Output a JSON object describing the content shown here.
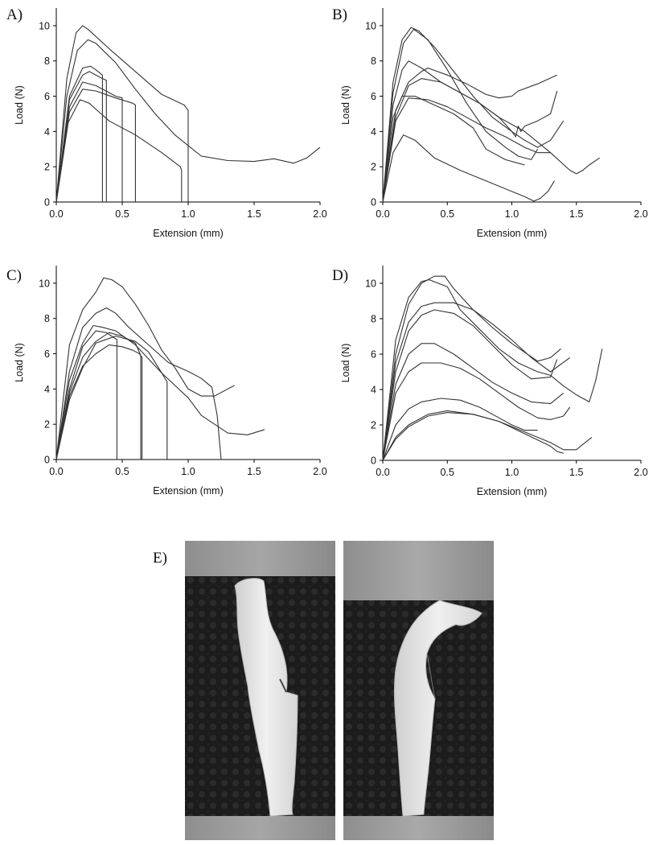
{
  "panels": [
    {
      "label": "A)"
    },
    {
      "label": "B)"
    },
    {
      "label": "C)"
    },
    {
      "label": "D)"
    },
    {
      "label": "E)"
    }
  ],
  "chart_data": [
    {
      "panel": "A)",
      "type": "line",
      "xlabel": "Extension (mm)",
      "ylabel": "Load (N)",
      "xlim": [
        0,
        2.0
      ],
      "ylim": [
        0,
        11
      ],
      "xticks": [
        "0.0",
        "0.5",
        "1.0",
        "1.5",
        "2.0"
      ],
      "yticks": [
        "0",
        "2",
        "4",
        "6",
        "8",
        "10"
      ],
      "grid": false,
      "series": [
        {
          "x": [
            0,
            0.08,
            0.15,
            0.2,
            0.24,
            0.4,
            0.6,
            0.8,
            0.97,
            1.0,
            1.0
          ],
          "y": [
            0,
            7,
            9.6,
            10.0,
            9.8,
            8.7,
            7.4,
            6.1,
            5.5,
            5.2,
            0
          ]
        },
        {
          "x": [
            0,
            0.08,
            0.16,
            0.24,
            0.3,
            0.45,
            0.6,
            0.75,
            0.9,
            1.0,
            1.1,
            1.3,
            1.5,
            1.65,
            1.8,
            1.9,
            2.0
          ],
          "y": [
            0,
            6,
            8.6,
            9.2,
            9.0,
            7.9,
            6.4,
            5.0,
            3.8,
            3.2,
            2.6,
            2.35,
            2.3,
            2.45,
            2.2,
            2.5,
            3.1
          ]
        },
        {
          "x": [
            0,
            0.1,
            0.2,
            0.26,
            0.3,
            0.35,
            0.35
          ],
          "y": [
            0,
            6,
            7.6,
            7.7,
            7.5,
            7.2,
            0
          ]
        },
        {
          "x": [
            0,
            0.1,
            0.2,
            0.25,
            0.35,
            0.38,
            0.38
          ],
          "y": [
            0,
            5.8,
            7.2,
            7.4,
            7.0,
            6.9,
            0
          ]
        },
        {
          "x": [
            0,
            0.1,
            0.2,
            0.3,
            0.45,
            0.5,
            0.5
          ],
          "y": [
            0,
            5.4,
            6.8,
            6.6,
            6.0,
            5.9,
            0
          ]
        },
        {
          "x": [
            0,
            0.1,
            0.2,
            0.3,
            0.45,
            0.58,
            0.6,
            0.6
          ],
          "y": [
            0,
            5.1,
            6.4,
            6.3,
            5.9,
            5.6,
            5.5,
            0
          ]
        },
        {
          "x": [
            0,
            0.09,
            0.18,
            0.25,
            0.4,
            0.6,
            0.8,
            0.94,
            0.95,
            0.95
          ],
          "y": [
            0,
            4.5,
            5.8,
            5.6,
            4.6,
            3.8,
            2.8,
            2.0,
            1.8,
            0
          ]
        }
      ]
    },
    {
      "panel": "B)",
      "type": "line",
      "xlabel": "Extension (mm)",
      "ylabel": "Load (N)",
      "xlim": [
        0,
        2.0
      ],
      "ylim": [
        0,
        11
      ],
      "xticks": [
        "0.0",
        "0.5",
        "1.0",
        "1.5",
        "2.0"
      ],
      "yticks": [
        "0",
        "2",
        "4",
        "6",
        "8",
        "10"
      ],
      "grid": false,
      "series": [
        {
          "x": [
            0,
            0.08,
            0.15,
            0.22,
            0.28,
            0.4,
            0.55,
            0.7,
            0.85,
            1.0,
            1.03,
            1.05,
            1.07,
            1.1,
            1.2,
            1.3,
            1.35
          ],
          "y": [
            0,
            6.8,
            9.2,
            9.9,
            9.7,
            8.8,
            7.4,
            6.0,
            4.8,
            4.0,
            3.7,
            4.3,
            4.0,
            4.3,
            4.6,
            5.0,
            6.3
          ]
        },
        {
          "x": [
            0,
            0.08,
            0.16,
            0.24,
            0.35,
            0.5,
            0.65,
            0.8,
            0.95,
            1.05,
            1.15,
            1.2
          ],
          "y": [
            0,
            6.2,
            9.0,
            9.8,
            9.2,
            7.5,
            5.6,
            4.0,
            3.1,
            2.6,
            2.4,
            3.0
          ]
        },
        {
          "x": [
            0,
            0.08,
            0.15,
            0.2,
            0.3,
            0.45,
            0.6,
            0.75,
            0.9,
            1.0,
            1.1,
            1.2,
            1.3,
            1.4
          ],
          "y": [
            0,
            5.5,
            7.5,
            8.0,
            7.6,
            6.8,
            6.2,
            5.6,
            4.8,
            4.0,
            3.5,
            3.1,
            3.5,
            4.6
          ]
        },
        {
          "x": [
            0,
            0.1,
            0.2,
            0.3,
            0.35,
            0.5,
            0.65,
            0.8,
            0.9,
            1.0,
            1.05,
            1.2,
            1.35
          ],
          "y": [
            0,
            5.2,
            6.8,
            7.4,
            7.6,
            7.2,
            6.7,
            6.1,
            5.9,
            6.0,
            6.3,
            6.7,
            7.2
          ]
        },
        {
          "x": [
            0,
            0.1,
            0.2,
            0.3,
            0.45,
            0.6,
            0.75,
            0.9,
            1.0,
            1.1,
            1.3,
            1.45,
            1.5,
            1.55,
            1.6,
            1.68
          ],
          "y": [
            0,
            4.8,
            6.6,
            7.0,
            6.8,
            6.2,
            5.6,
            4.8,
            4.4,
            4.0,
            2.8,
            1.8,
            1.6,
            1.8,
            2.1,
            2.5
          ]
        },
        {
          "x": [
            0,
            0.1,
            0.2,
            0.35,
            0.5,
            0.65,
            0.8,
            0.95,
            1.1,
            1.2,
            1.3
          ],
          "y": [
            0,
            4.6,
            5.9,
            5.8,
            5.4,
            4.8,
            4.2,
            3.7,
            3.1,
            2.8,
            2.8
          ]
        },
        {
          "x": [
            0,
            0.08,
            0.15,
            0.25,
            0.4,
            0.55,
            0.7,
            0.8,
            0.95,
            1.05,
            1.1
          ],
          "y": [
            0,
            4.8,
            6.0,
            6.0,
            5.5,
            5.0,
            4.2,
            3.0,
            2.4,
            2.2,
            2.1
          ]
        },
        {
          "x": [
            0,
            0.08,
            0.16,
            0.25,
            0.4,
            0.6,
            0.8,
            1.0,
            1.1,
            1.17,
            1.22,
            1.28,
            1.33
          ],
          "y": [
            0,
            2.8,
            3.8,
            3.5,
            2.5,
            1.8,
            1.2,
            0.6,
            0.3,
            0.05,
            0.2,
            0.6,
            1.2
          ]
        }
      ]
    },
    {
      "panel": "C)",
      "type": "line",
      "xlabel": "Extension (mm)",
      "ylabel": "Load (N)",
      "xlim": [
        0,
        2.0
      ],
      "ylim": [
        0,
        11
      ],
      "xticks": [
        "0.0",
        "0.5",
        "1.0",
        "1.5",
        "2.0"
      ],
      "yticks": [
        "0",
        "2",
        "4",
        "6",
        "8",
        "10"
      ],
      "grid": false,
      "series": [
        {
          "x": [
            0,
            0.1,
            0.2,
            0.3,
            0.36,
            0.42,
            0.5,
            0.6,
            0.7,
            0.8,
            0.9,
            1.0,
            1.1,
            1.2,
            1.25,
            1.35
          ],
          "y": [
            0,
            6.5,
            8.5,
            9.5,
            10.3,
            10.2,
            9.8,
            8.8,
            7.6,
            6.2,
            5.2,
            4.0,
            3.6,
            3.6,
            3.8,
            4.2
          ]
        },
        {
          "x": [
            0,
            0.1,
            0.2,
            0.3,
            0.38,
            0.45,
            0.55,
            0.7,
            0.85,
            1.0,
            1.1,
            1.18,
            1.22,
            1.24,
            1.25
          ],
          "y": [
            0,
            5.0,
            7.5,
            8.3,
            8.6,
            8.3,
            7.5,
            6.5,
            5.5,
            5.0,
            4.6,
            4.1,
            2.5,
            0.8,
            0
          ]
        },
        {
          "x": [
            0,
            0.1,
            0.2,
            0.28,
            0.35,
            0.45,
            0.6,
            0.8,
            1.0,
            1.1,
            1.3,
            1.45,
            1.58
          ],
          "y": [
            0,
            4.5,
            6.6,
            7.6,
            7.5,
            7.3,
            6.5,
            4.9,
            3.5,
            2.5,
            1.5,
            1.4,
            1.7
          ]
        },
        {
          "x": [
            0,
            0.1,
            0.2,
            0.3,
            0.38,
            0.46,
            0.46
          ],
          "y": [
            0,
            4.0,
            6.4,
            7.3,
            7.2,
            6.8,
            0
          ]
        },
        {
          "x": [
            0,
            0.1,
            0.2,
            0.3,
            0.4,
            0.5,
            0.6,
            0.64,
            0.64
          ],
          "y": [
            0,
            3.8,
            5.8,
            6.7,
            7.2,
            7.0,
            6.6,
            5.9,
            0
          ]
        },
        {
          "x": [
            0,
            0.1,
            0.2,
            0.3,
            0.4,
            0.5,
            0.58,
            0.63,
            0.65,
            0.65
          ],
          "y": [
            0,
            3.6,
            5.3,
            6.0,
            6.5,
            6.4,
            6.2,
            6.0,
            5.8,
            0
          ]
        },
        {
          "x": [
            0,
            0.1,
            0.2,
            0.3,
            0.45,
            0.6,
            0.7,
            0.8,
            0.84,
            0.84
          ],
          "y": [
            0,
            3.4,
            5.2,
            6.6,
            7.0,
            6.7,
            6.1,
            4.9,
            4.4,
            0
          ]
        }
      ]
    },
    {
      "panel": "D)",
      "type": "line",
      "xlabel": "Extension (mm)",
      "ylabel": "Load (N)",
      "xlim": [
        0,
        2.0
      ],
      "ylim": [
        0,
        11
      ],
      "xticks": [
        "0.0",
        "0.5",
        "1.0",
        "1.5",
        "2.0"
      ],
      "yticks": [
        "0",
        "2",
        "4",
        "6",
        "8",
        "10"
      ],
      "grid": false,
      "series": [
        {
          "x": [
            0,
            0.1,
            0.2,
            0.3,
            0.36,
            0.5,
            0.6,
            0.75,
            0.9,
            1.05,
            1.2,
            1.3,
            1.4,
            1.5,
            1.6,
            1.65,
            1.7
          ],
          "y": [
            0,
            6.8,
            9.2,
            10.1,
            10.2,
            9.8,
            8.5,
            7.4,
            6.3,
            5.5,
            5.0,
            4.8,
            4.2,
            3.7,
            3.3,
            4.5,
            6.3
          ]
        },
        {
          "x": [
            0,
            0.1,
            0.2,
            0.3,
            0.4,
            0.48,
            0.55,
            0.7,
            0.85,
            1.0,
            1.2,
            1.3,
            1.38
          ],
          "y": [
            0,
            6.0,
            8.8,
            10.0,
            10.4,
            10.4,
            9.7,
            8.5,
            7.5,
            6.6,
            5.6,
            5.8,
            6.3
          ]
        },
        {
          "x": [
            0,
            0.1,
            0.2,
            0.3,
            0.4,
            0.55,
            0.7,
            0.85,
            1.0,
            1.15,
            1.3,
            1.45
          ],
          "y": [
            0,
            5.5,
            7.8,
            8.7,
            8.9,
            8.9,
            8.5,
            7.7,
            6.8,
            5.8,
            5.0,
            5.8
          ]
        },
        {
          "x": [
            0,
            0.1,
            0.2,
            0.3,
            0.4,
            0.55,
            0.7,
            0.85,
            1.0,
            1.15,
            1.3,
            1.35
          ],
          "y": [
            0,
            5.0,
            7.3,
            8.2,
            8.5,
            8.3,
            7.6,
            6.5,
            5.4,
            4.6,
            4.7,
            5.7
          ]
        },
        {
          "x": [
            0,
            0.1,
            0.2,
            0.3,
            0.4,
            0.55,
            0.7,
            0.85,
            1.0,
            1.15,
            1.3,
            1.4
          ],
          "y": [
            0,
            4.3,
            6.0,
            6.6,
            6.6,
            6.0,
            5.2,
            4.4,
            3.8,
            3.3,
            3.2,
            3.8
          ]
        },
        {
          "x": [
            0,
            0.1,
            0.2,
            0.3,
            0.45,
            0.6,
            0.75,
            0.9,
            1.05,
            1.2,
            1.3,
            1.4,
            1.45
          ],
          "y": [
            0,
            3.8,
            5.0,
            5.5,
            5.5,
            5.2,
            4.6,
            3.8,
            3.0,
            2.4,
            2.3,
            2.5,
            3.0
          ]
        },
        {
          "x": [
            0,
            0.1,
            0.2,
            0.3,
            0.45,
            0.6,
            0.75,
            0.9,
            1.0,
            1.1,
            1.2
          ],
          "y": [
            0,
            2.0,
            2.9,
            3.3,
            3.5,
            3.4,
            3.0,
            2.4,
            2.0,
            1.7,
            1.7
          ]
        },
        {
          "x": [
            0,
            0.1,
            0.2,
            0.35,
            0.5,
            0.7,
            0.9,
            1.1,
            1.3,
            1.4,
            1.5,
            1.55,
            1.62
          ],
          "y": [
            0,
            1.3,
            2.0,
            2.6,
            2.8,
            2.6,
            2.2,
            1.6,
            1.0,
            0.6,
            0.6,
            0.9,
            1.3
          ]
        },
        {
          "x": [
            0,
            0.1,
            0.2,
            0.35,
            0.5,
            0.7,
            0.9,
            1.1,
            1.3,
            1.35,
            1.4
          ],
          "y": [
            0,
            1.2,
            1.9,
            2.5,
            2.7,
            2.6,
            2.2,
            1.5,
            0.8,
            0.5,
            0.4
          ]
        }
      ]
    }
  ]
}
